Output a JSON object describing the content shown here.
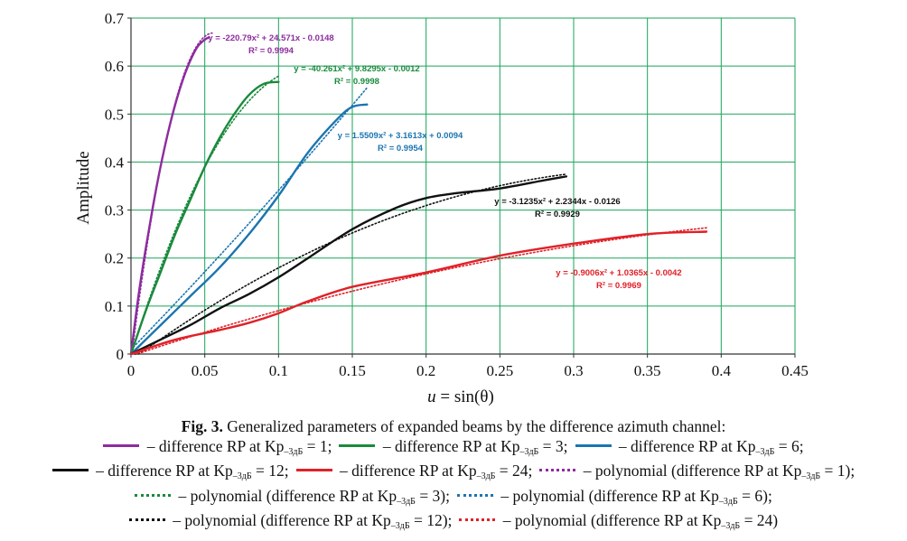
{
  "chart_data": {
    "type": "line",
    "xlabel_prefix": "u",
    "xlabel_rest": " = sin(θ)",
    "ylabel": "Amplitude",
    "xlim": [
      0,
      0.45
    ],
    "ylim": [
      0,
      0.7
    ],
    "xticks": [
      "0",
      "0.05",
      "0.1",
      "0.15",
      "0.2",
      "0.25",
      "0.3",
      "0.35",
      "0.4",
      "0.45"
    ],
    "yticks": [
      "0",
      "0.1",
      "0.2",
      "0.3",
      "0.4",
      "0.5",
      "0.6",
      "0.7"
    ],
    "grid": true,
    "grid_color": "#1aa35a",
    "series": [
      {
        "color": "#8e2c9e",
        "x": [
          0,
          0.005,
          0.01,
          0.015,
          0.02,
          0.025,
          0.03,
          0.035,
          0.04,
          0.045,
          0.05,
          0.053
        ],
        "y": [
          0,
          0.12,
          0.22,
          0.31,
          0.39,
          0.46,
          0.52,
          0.57,
          0.61,
          0.64,
          0.655,
          0.66
        ]
      },
      {
        "color": "#1a8a3c",
        "x": [
          0,
          0.01,
          0.02,
          0.03,
          0.04,
          0.05,
          0.06,
          0.07,
          0.08,
          0.09,
          0.1
        ],
        "y": [
          0,
          0.09,
          0.17,
          0.25,
          0.32,
          0.39,
          0.45,
          0.5,
          0.54,
          0.563,
          0.567
        ]
      },
      {
        "color": "#1b75b0",
        "x": [
          0,
          0.01,
          0.02,
          0.04,
          0.06,
          0.08,
          0.1,
          0.12,
          0.14,
          0.15,
          0.16
        ],
        "y": [
          0,
          0.03,
          0.06,
          0.12,
          0.18,
          0.25,
          0.33,
          0.42,
          0.49,
          0.515,
          0.52
        ]
      },
      {
        "color": "#111111",
        "x": [
          0,
          0.02,
          0.04,
          0.06,
          0.08,
          0.1,
          0.12,
          0.15,
          0.18,
          0.2,
          0.22,
          0.25,
          0.28,
          0.295
        ],
        "y": [
          0,
          0.03,
          0.06,
          0.095,
          0.125,
          0.16,
          0.2,
          0.26,
          0.305,
          0.325,
          0.335,
          0.345,
          0.362,
          0.37
        ]
      },
      {
        "color": "#e02128",
        "x": [
          0,
          0.03,
          0.06,
          0.08,
          0.1,
          0.12,
          0.15,
          0.2,
          0.25,
          0.3,
          0.35,
          0.39
        ],
        "y": [
          0,
          0.03,
          0.05,
          0.065,
          0.085,
          0.11,
          0.14,
          0.17,
          0.205,
          0.23,
          0.25,
          0.255
        ]
      }
    ],
    "trendlines": [
      {
        "color": "#8e2c9e",
        "a": -220.79,
        "b": 24.571,
        "c": -0.0148,
        "x_end": 0.055
      },
      {
        "color": "#1a8a3c",
        "a": -40.261,
        "b": 9.8295,
        "c": -0.0012,
        "x_end": 0.1
      },
      {
        "color": "#1b75b0",
        "a": 1.5509,
        "b": 3.1613,
        "c": 0.0094,
        "x_end": 0.16
      },
      {
        "color": "#111111",
        "a": -3.1235,
        "b": 2.2344,
        "c": -0.0126,
        "x_end": 0.295
      },
      {
        "color": "#e02128",
        "a": -0.9006,
        "b": 1.0365,
        "c": -0.0042,
        "x_end": 0.39
      }
    ],
    "annotations": [
      {
        "eq": "y = -220.79x² + 24.571x - 0.0148",
        "r2": "R² = 0.9994",
        "color": "#8e2c9e"
      },
      {
        "eq": "y = -40.261x² + 9.8295x - 0.0012",
        "r2": "R² = 0.9998",
        "color": "#1a8a3c"
      },
      {
        "eq": "y = 1.5509x² + 3.1613x + 0.0094",
        "r2": "R² = 0.9954",
        "color": "#1b75b0"
      },
      {
        "eq": "y = -3.1235x² + 2.2344x - 0.0126",
        "r2": "R² = 0.9929",
        "color": "#111111"
      },
      {
        "eq": "y = -0.9006x² + 1.0365x - 0.0042",
        "r2": "R² = 0.9969",
        "color": "#e02128"
      }
    ]
  },
  "caption": {
    "fig_label": "Fig. 3.",
    "title_text": " Generalized parameters of expanded beams by the difference azimuth channel:",
    "kp": "Kp",
    "sub": "–3дБ",
    "lines": [
      [
        {
          "swatch": "solid",
          "color": "#8e2c9e",
          "text": " – difference RP at ",
          "value": " = 1;"
        },
        {
          "swatch": "solid",
          "color": "#1a8a3c",
          "text": " – difference RP at ",
          "value": " = 3;"
        },
        {
          "swatch": "solid",
          "color": "#1b75b0",
          "text": " – difference RP at ",
          "value": " = 6;"
        }
      ],
      [
        {
          "swatch": "solid",
          "color": "#111111",
          "text": " – difference RP at ",
          "value": " = 12;"
        },
        {
          "swatch": "solid",
          "color": "#e02128",
          "text": " – difference RP at ",
          "value": " = 24;"
        },
        {
          "swatch": "dot",
          "color": "#8e2c9e",
          "text": " – polynomial (difference RP at ",
          "value": " = 1);"
        }
      ],
      [
        {
          "swatch": "dot",
          "color": "#1a8a3c",
          "text": " – polynomial (difference RP at ",
          "value": " = 3);"
        },
        {
          "swatch": "dot",
          "color": "#1b75b0",
          "text": " – polynomial (difference RP at ",
          "value": " = 6);"
        }
      ],
      [
        {
          "swatch": "dot",
          "color": "#111111",
          "text": " – polynomial (difference RP at ",
          "value": " = 12);"
        },
        {
          "swatch": "dot",
          "color": "#e02128",
          "text": " – polynomial (difference RP at ",
          "value": " = 24)"
        }
      ]
    ]
  }
}
